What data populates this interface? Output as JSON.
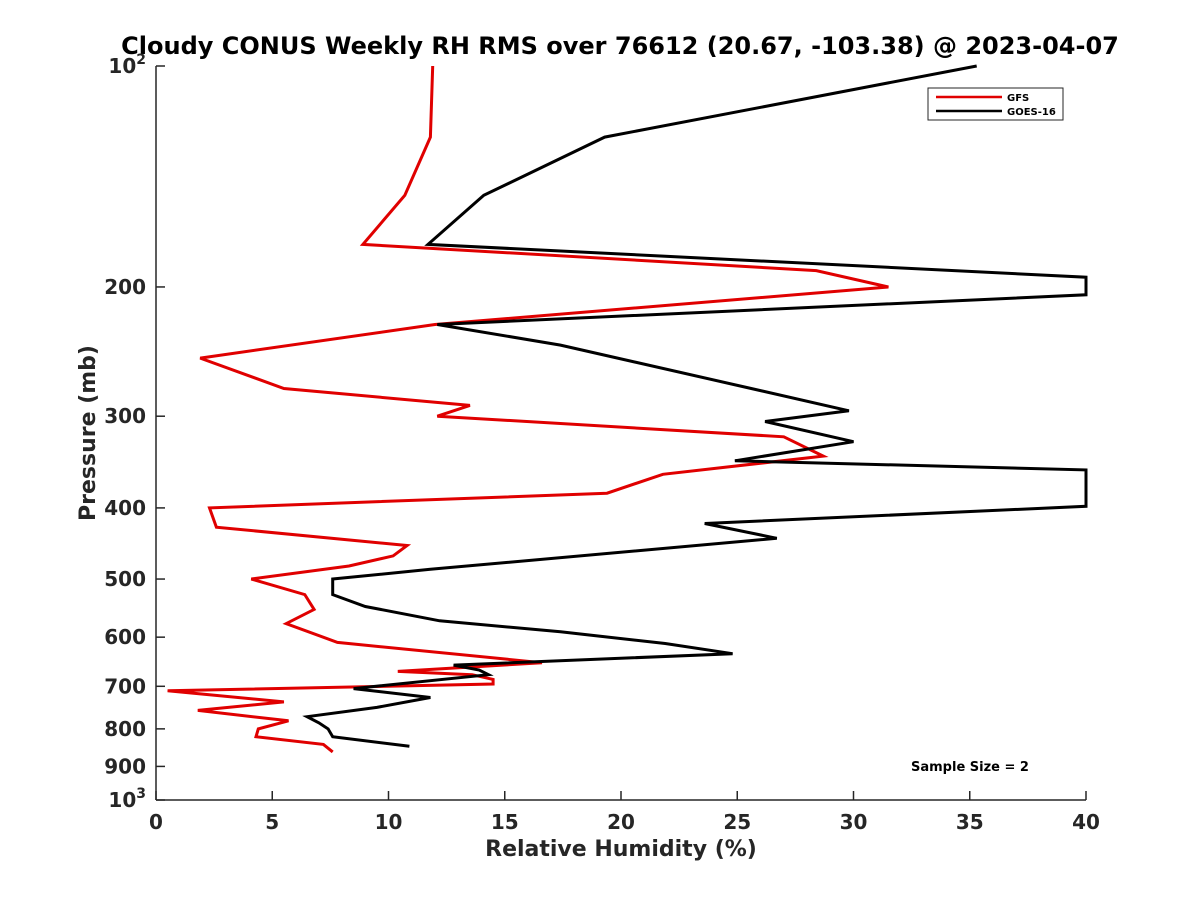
{
  "chart_data": {
    "type": "line",
    "title": "Cloudy CONUS Weekly RH RMS over 76612 (20.67, -103.38) @ 2023-04-07",
    "xlabel": "Relative Humidity (%)",
    "ylabel": "Pressure (mb)",
    "xlim": [
      0,
      40
    ],
    "ylim": [
      100,
      1000
    ],
    "yscale": "log",
    "y_reversed": true,
    "x_ticks": [
      "0",
      "5",
      "10",
      "15",
      "20",
      "25",
      "30",
      "35",
      "40"
    ],
    "x_tick_values": [
      0,
      5,
      10,
      15,
      20,
      25,
      30,
      35,
      40
    ],
    "y_ticks": [
      {
        "value": 100,
        "base": "10",
        "exp": "2"
      },
      {
        "value": 200,
        "label": "200"
      },
      {
        "value": 300,
        "label": "300"
      },
      {
        "value": 400,
        "label": "400"
      },
      {
        "value": 500,
        "label": "500"
      },
      {
        "value": 600,
        "label": "600"
      },
      {
        "value": 700,
        "label": "700"
      },
      {
        "value": 800,
        "label": "800"
      },
      {
        "value": 900,
        "label": "900"
      },
      {
        "value": 1000,
        "base": "10",
        "exp": "3"
      }
    ],
    "legend_position": "top-right",
    "annotation": "Sample Size = 2",
    "series": [
      {
        "name": "GFS",
        "color": "#e00000",
        "points": [
          [
            11.9,
            100
          ],
          [
            11.8,
            125
          ],
          [
            10.7,
            150
          ],
          [
            8.9,
            175
          ],
          [
            28.4,
            190
          ],
          [
            31.5,
            200
          ],
          [
            12.0,
            225
          ],
          [
            1.9,
            250
          ],
          [
            5.5,
            275
          ],
          [
            13.5,
            290
          ],
          [
            12.1,
            300
          ],
          [
            27.0,
            320
          ],
          [
            28.7,
            340
          ],
          [
            21.8,
            360
          ],
          [
            19.4,
            382
          ],
          [
            2.3,
            400
          ],
          [
            2.6,
            425
          ],
          [
            10.8,
            450
          ],
          [
            10.2,
            465
          ],
          [
            8.3,
            480
          ],
          [
            4.1,
            500
          ],
          [
            6.4,
            525
          ],
          [
            6.8,
            550
          ],
          [
            5.6,
            575
          ],
          [
            7.8,
            610
          ],
          [
            16.6,
            650
          ],
          [
            10.4,
            668
          ],
          [
            13.6,
            675
          ],
          [
            14.5,
            685
          ],
          [
            14.5,
            695
          ],
          [
            0.5,
            710
          ],
          [
            5.5,
            735
          ],
          [
            1.8,
            755
          ],
          [
            5.7,
            780
          ],
          [
            4.4,
            800
          ],
          [
            4.3,
            820
          ],
          [
            7.2,
            840
          ],
          [
            7.6,
            860
          ]
        ]
      },
      {
        "name": "GOES-16",
        "color": "#000000",
        "points": [
          [
            35.3,
            100
          ],
          [
            19.3,
            125
          ],
          [
            14.1,
            150
          ],
          [
            11.7,
            175
          ],
          [
            40.0,
            194
          ],
          [
            40.0,
            205
          ],
          [
            12.1,
            225
          ],
          [
            17.4,
            240
          ],
          [
            25.6,
            275
          ],
          [
            29.8,
            295
          ],
          [
            26.2,
            305
          ],
          [
            30.0,
            325
          ],
          [
            24.9,
            345
          ],
          [
            40.0,
            355
          ],
          [
            40.0,
            398
          ],
          [
            23.6,
            420
          ],
          [
            26.7,
            440
          ],
          [
            11.8,
            485
          ],
          [
            7.6,
            500
          ],
          [
            7.6,
            525
          ],
          [
            9.0,
            545
          ],
          [
            12.2,
            570
          ],
          [
            17.4,
            590
          ],
          [
            21.9,
            612
          ],
          [
            24.8,
            632
          ],
          [
            12.8,
            655
          ],
          [
            13.9,
            665
          ],
          [
            14.3,
            675
          ],
          [
            8.5,
            705
          ],
          [
            11.8,
            725
          ],
          [
            9.5,
            748
          ],
          [
            6.5,
            770
          ],
          [
            7.0,
            785
          ],
          [
            7.4,
            800
          ],
          [
            7.6,
            820
          ],
          [
            10.9,
            845
          ]
        ]
      }
    ]
  }
}
